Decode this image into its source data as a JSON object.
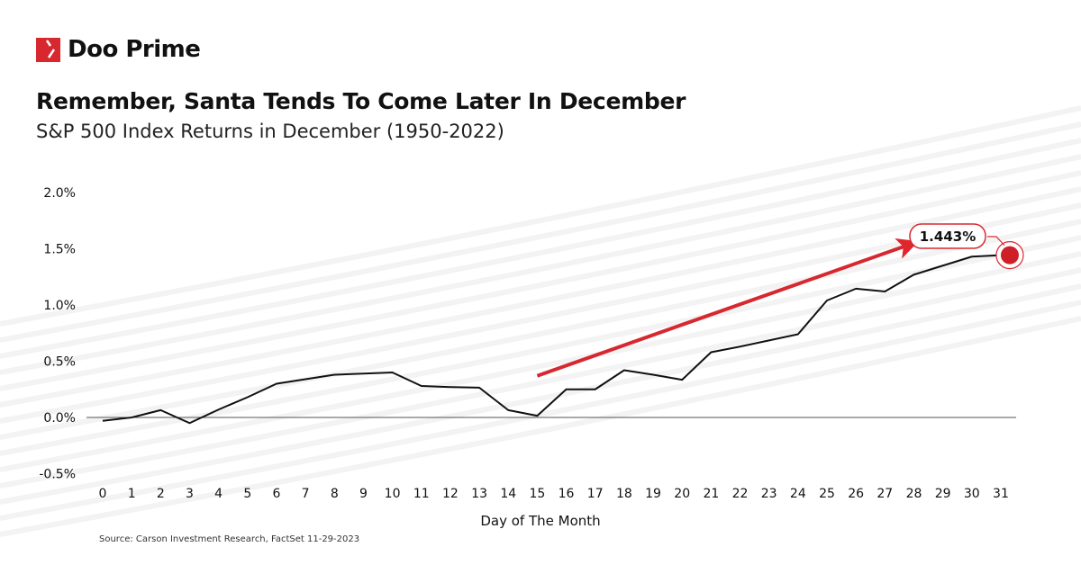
{
  "brand": {
    "name": "Doo Prime",
    "color": "#d7282f"
  },
  "chart_data": {
    "type": "line",
    "title": "Remember, Santa Tends To Come Later In December",
    "subtitle": "S&P 500 Index Returns in December (1950-2022)",
    "xlabel": "Day of The Month",
    "ylabel": "",
    "x": [
      0,
      1,
      2,
      3,
      4,
      5,
      6,
      7,
      8,
      9,
      10,
      11,
      12,
      13,
      14,
      15,
      16,
      17,
      18,
      19,
      20,
      21,
      22,
      23,
      24,
      25,
      26,
      27,
      28,
      29,
      30,
      31
    ],
    "values": [
      -0.03,
      0.0,
      0.065,
      -0.05,
      0.07,
      0.18,
      0.3,
      0.34,
      0.38,
      0.39,
      0.4,
      0.28,
      0.27,
      0.265,
      0.065,
      0.015,
      0.25,
      0.25,
      0.42,
      0.38,
      0.335,
      0.58,
      0.63,
      0.685,
      0.74,
      1.04,
      1.145,
      1.12,
      1.27,
      1.35,
      1.43,
      1.443
    ],
    "ylim": [
      -0.5,
      2.0
    ],
    "yticks": [
      "-0.5%",
      "0.0%",
      "0.5%",
      "1.0%",
      "1.5%",
      "2.0%"
    ],
    "ytick_values": [
      -0.5,
      0,
      0.5,
      1.0,
      1.5,
      2.0
    ],
    "xticks": [
      "0",
      "1",
      "2",
      "3",
      "4",
      "5",
      "6",
      "7",
      "8",
      "9",
      "10",
      "11",
      "12",
      "13",
      "14",
      "15",
      "16",
      "17",
      "18",
      "19",
      "20",
      "21",
      "22",
      "23",
      "24",
      "25",
      "26",
      "27",
      "28",
      "29",
      "30",
      "31"
    ],
    "annotation": {
      "label": "1.443%",
      "x": 31,
      "y": 1.443
    },
    "trend_arrow": {
      "from": [
        15,
        0.37
      ],
      "to": [
        28,
        1.55
      ]
    },
    "line_color": "#111111",
    "accent_color": "#d7282f",
    "grid": false,
    "source": "Source: Carson Investment Research, FactSet 11-29-2023"
  }
}
